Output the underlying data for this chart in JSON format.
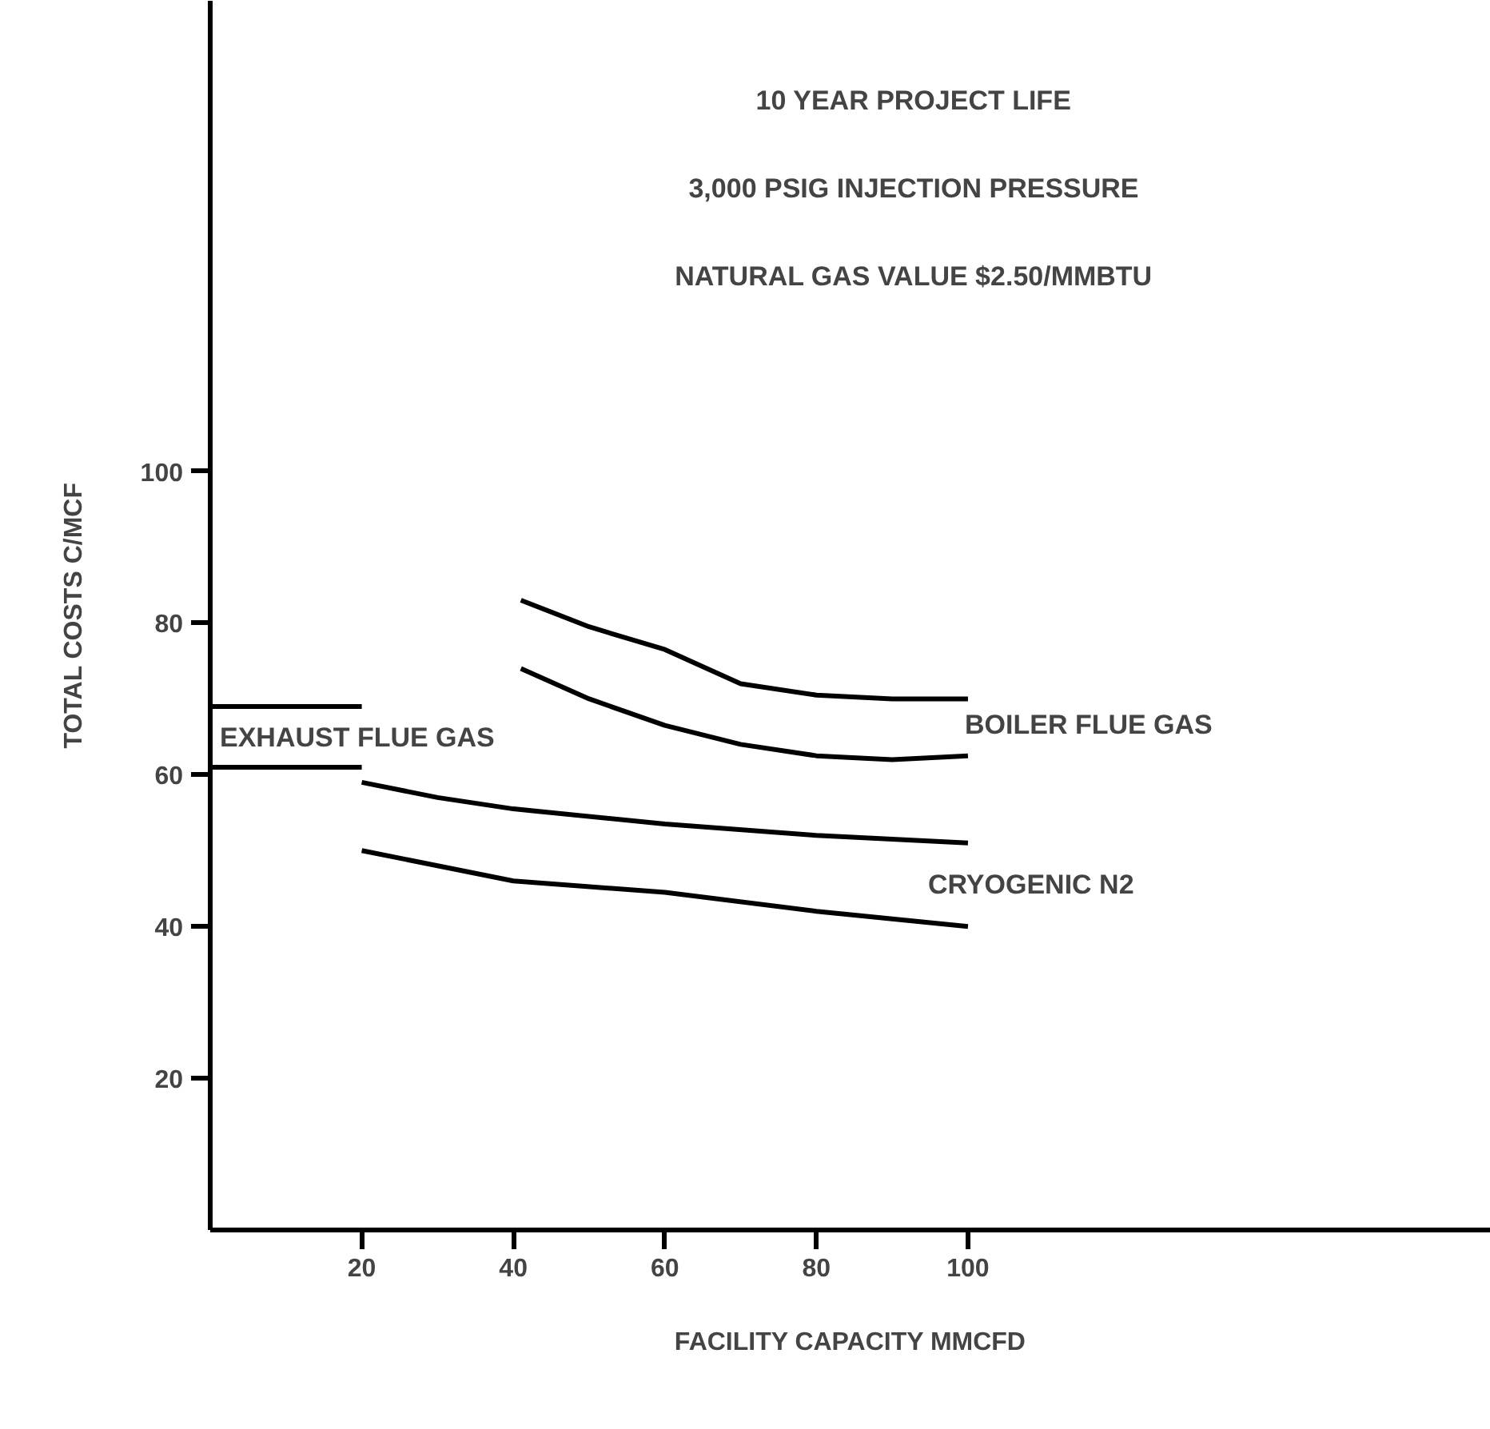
{
  "chart_data": {
    "type": "line",
    "title": "10 YEAR PROJECT LIFE",
    "subtitle": "3,000 PSIG INJECTION PRESSURE\nNATURAL GAS VALUE $2.50/MMBTU",
    "xlabel": "FACILITY CAPACITY MMCFD",
    "ylabel": "TOTAL COSTS C/MCF",
    "xlim": [
      0,
      169
    ],
    "ylim": [
      0,
      162
    ],
    "xticks": [
      20,
      40,
      60,
      80,
      100
    ],
    "yticks": [
      20,
      40,
      60,
      80,
      100
    ],
    "grid": false,
    "marker": "none",
    "line_style": "solid",
    "series": [
      {
        "color": "#000000",
        "x": [
          0,
          20
        ],
        "values": [
          69,
          69
        ]
      },
      {
        "color": "#000000",
        "x": [
          0,
          20
        ],
        "values": [
          61,
          61
        ]
      },
      {
        "color": "#000000",
        "x": [
          20,
          30,
          40,
          60,
          80,
          100
        ],
        "values": [
          59,
          57,
          55.5,
          53.5,
          52,
          51
        ]
      },
      {
        "color": "#000000",
        "x": [
          20,
          30,
          40,
          60,
          80,
          100
        ],
        "values": [
          50,
          48,
          46,
          44.5,
          42,
          40
        ]
      },
      {
        "color": "#000000",
        "x": [
          41,
          50,
          60,
          70,
          80,
          90,
          100
        ],
        "values": [
          83,
          79.5,
          76.5,
          72,
          70.5,
          70,
          70
        ]
      },
      {
        "color": "#000000",
        "x": [
          41,
          50,
          60,
          70,
          80,
          90,
          100
        ],
        "values": [
          74,
          70,
          66.5,
          64,
          62.5,
          62,
          62.5
        ]
      }
    ],
    "annotations": [
      "EXHAUST FLUE GAS",
      "BOILER FLUE GAS",
      "CRYOGENIC N2"
    ]
  }
}
